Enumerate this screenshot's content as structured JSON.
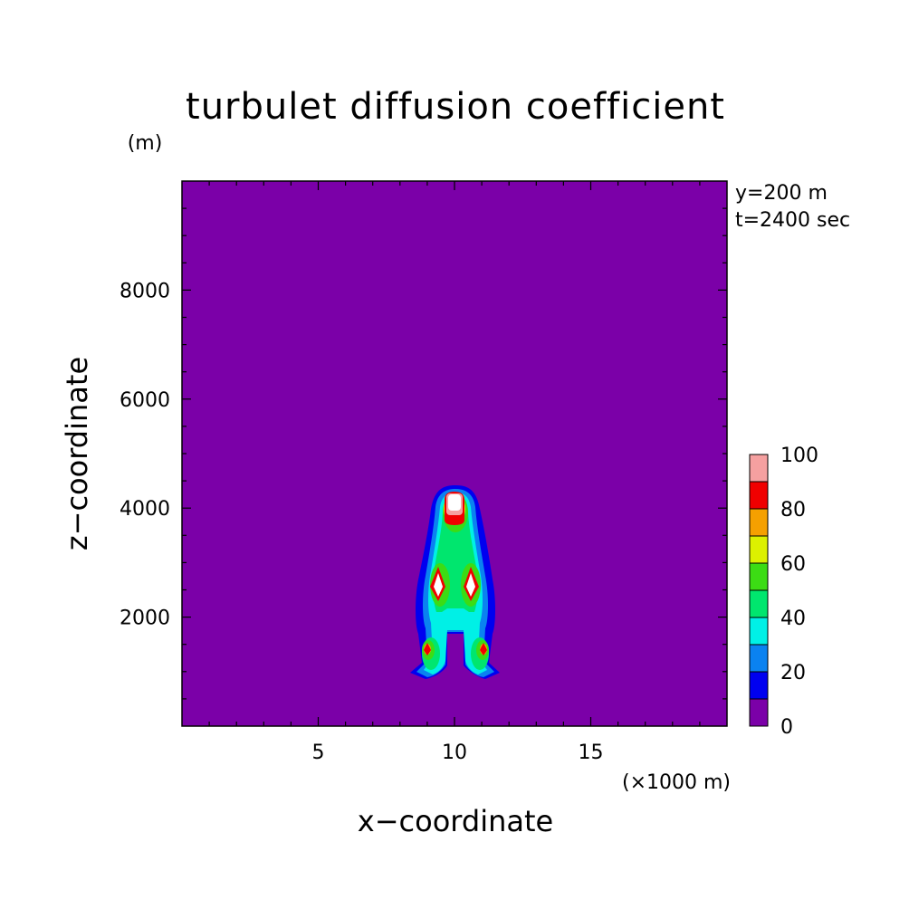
{
  "chart_data": {
    "type": "contour",
    "title": "turbulet diffusion coefficient",
    "xlabel": "x−coordinate",
    "ylabel": "z−coordinate",
    "x_unit": "(×1000 m)",
    "y_unit": "(m)",
    "annotations": [
      "y=200 m",
      "t=2400 sec"
    ],
    "xlim": [
      0,
      20
    ],
    "ylim": [
      0,
      10000
    ],
    "x_ticks": [
      5,
      10,
      15
    ],
    "y_ticks": [
      2000,
      4000,
      6000,
      8000
    ],
    "grid": false,
    "background_value": 0,
    "colorbar": {
      "ticks": [
        0,
        20,
        40,
        60,
        80,
        100
      ],
      "levels": [
        {
          "from": 0,
          "to": 10,
          "color": "#7b00a8"
        },
        {
          "from": 10,
          "to": 20,
          "color": "#0000f0"
        },
        {
          "from": 20,
          "to": 30,
          "color": "#0a82f0"
        },
        {
          "from": 30,
          "to": 40,
          "color": "#00f0e6"
        },
        {
          "from": 40,
          "to": 50,
          "color": "#00e66e"
        },
        {
          "from": 50,
          "to": 60,
          "color": "#3cdc14"
        },
        {
          "from": 60,
          "to": 70,
          "color": "#dcf000"
        },
        {
          "from": 70,
          "to": 80,
          "color": "#f5a000"
        },
        {
          "from": 80,
          "to": 90,
          "color": "#f00000"
        },
        {
          "from": 90,
          "to": 100,
          "color": "#f5a0a0"
        }
      ]
    },
    "field": {
      "description": "localized plume centered near x=10 (x1000 m), extending from z≈1000 m to z≈4400 m; maxima (>90) near (10, 4100), (9.4, 2650), (10.6, 2650); secondary maxima near (9.1, 1450), (10.9, 1450)",
      "features": [
        {
          "x": 10.0,
          "z": 4100,
          "peak": 100
        },
        {
          "x": 9.4,
          "z": 2650,
          "peak": 100
        },
        {
          "x": 10.6,
          "z": 2650,
          "peak": 100
        },
        {
          "x": 9.1,
          "z": 1450,
          "peak": 85
        },
        {
          "x": 10.9,
          "z": 1450,
          "peak": 85
        }
      ]
    }
  }
}
